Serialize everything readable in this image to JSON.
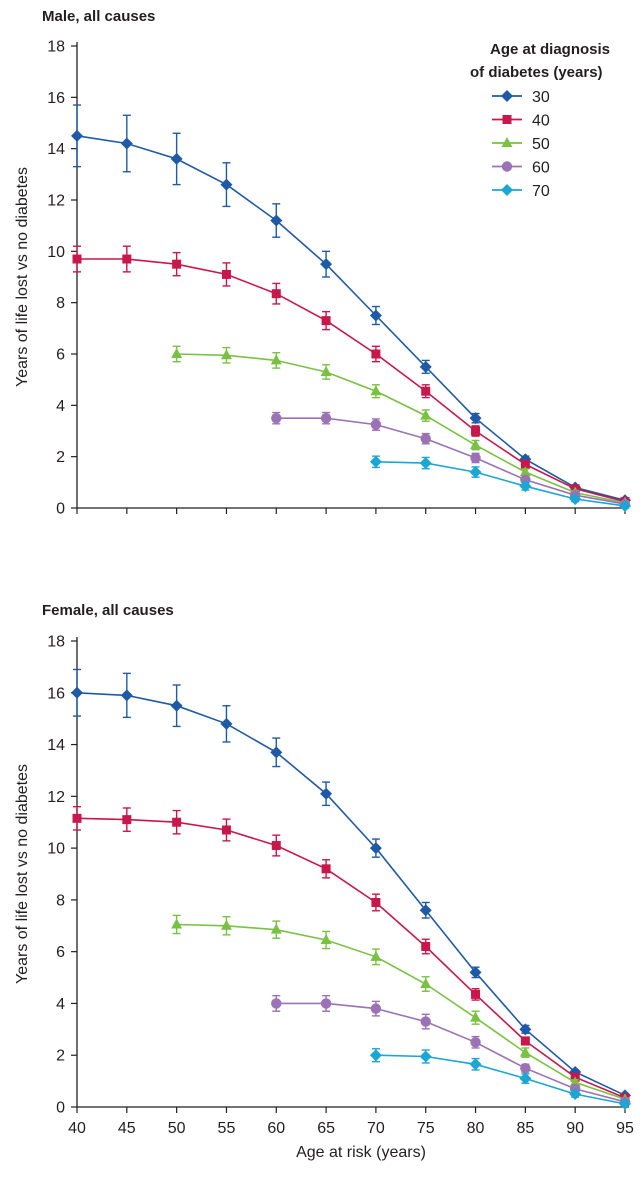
{
  "legend": {
    "title_line1": "Age at diagnosis",
    "title_line2": "of diabetes (years)",
    "position": "top-right",
    "entries": [
      {
        "label": "30",
        "color": "#1f5aa6",
        "marker": "diamond"
      },
      {
        "label": "40",
        "color": "#c8174b",
        "marker": "square"
      },
      {
        "label": "50",
        "color": "#7ac143",
        "marker": "triangle"
      },
      {
        "label": "60",
        "color": "#9b72b5",
        "marker": "circle"
      },
      {
        "label": "70",
        "color": "#1ba6d3",
        "marker": "diamond"
      }
    ]
  },
  "chart_data": [
    {
      "type": "line",
      "title": "Male, all causes",
      "ylabel": "Years of life lost vs no diabetes",
      "xlabel": "",
      "xlim": [
        40,
        95
      ],
      "ylim": [
        0,
        18
      ],
      "xticks": [
        40,
        45,
        50,
        55,
        60,
        65,
        70,
        75,
        80,
        85,
        90,
        95
      ],
      "yticks": [
        0,
        2,
        4,
        6,
        8,
        10,
        12,
        14,
        16,
        18
      ],
      "grid": false,
      "error_bars": true,
      "series": [
        {
          "name": "30",
          "x": [
            40,
            45,
            50,
            55,
            60,
            65,
            70,
            75,
            80,
            85,
            90,
            95
          ],
          "y": [
            14.5,
            14.2,
            13.6,
            12.6,
            11.2,
            9.5,
            7.5,
            5.5,
            3.5,
            1.9,
            0.8,
            0.3
          ],
          "err": [
            1.2,
            1.1,
            1.0,
            0.85,
            0.65,
            0.5,
            0.35,
            0.25,
            0.18,
            0.12,
            0.08,
            0.05
          ]
        },
        {
          "name": "40",
          "x": [
            40,
            45,
            50,
            55,
            60,
            65,
            70,
            75,
            80,
            85,
            90,
            95
          ],
          "y": [
            9.7,
            9.7,
            9.5,
            9.1,
            8.35,
            7.3,
            6.0,
            4.55,
            3.0,
            1.7,
            0.75,
            0.25
          ],
          "err": [
            0.5,
            0.5,
            0.45,
            0.45,
            0.4,
            0.35,
            0.3,
            0.25,
            0.2,
            0.12,
            0.08,
            0.05
          ]
        },
        {
          "name": "50",
          "x": [
            50,
            55,
            60,
            65,
            70,
            75,
            80,
            85,
            90,
            95
          ],
          "y": [
            6.0,
            5.95,
            5.75,
            5.3,
            4.55,
            3.6,
            2.45,
            1.4,
            0.6,
            0.2
          ],
          "err": [
            0.3,
            0.3,
            0.3,
            0.28,
            0.25,
            0.22,
            0.18,
            0.12,
            0.08,
            0.05
          ]
        },
        {
          "name": "60",
          "x": [
            60,
            65,
            70,
            75,
            80,
            85,
            90,
            95
          ],
          "y": [
            3.5,
            3.5,
            3.25,
            2.7,
            1.95,
            1.1,
            0.5,
            0.15
          ],
          "err": [
            0.22,
            0.22,
            0.22,
            0.2,
            0.18,
            0.12,
            0.08,
            0.05
          ]
        },
        {
          "name": "70",
          "x": [
            70,
            75,
            80,
            85,
            90,
            95
          ],
          "y": [
            1.8,
            1.75,
            1.4,
            0.85,
            0.35,
            0.08
          ],
          "err": [
            0.22,
            0.22,
            0.2,
            0.15,
            0.1,
            0.05
          ]
        }
      ]
    },
    {
      "type": "line",
      "title": "Female, all causes",
      "ylabel": "Years of life lost vs no diabetes",
      "xlabel": "Age at risk (years)",
      "xlim": [
        40,
        95
      ],
      "ylim": [
        0,
        18
      ],
      "xticks": [
        40,
        45,
        50,
        55,
        60,
        65,
        70,
        75,
        80,
        85,
        90,
        95
      ],
      "yticks": [
        0,
        2,
        4,
        6,
        8,
        10,
        12,
        14,
        16,
        18
      ],
      "grid": false,
      "error_bars": true,
      "series": [
        {
          "name": "30",
          "x": [
            40,
            45,
            50,
            55,
            60,
            65,
            70,
            75,
            80,
            85,
            90,
            95
          ],
          "y": [
            16.0,
            15.9,
            15.5,
            14.8,
            13.7,
            12.1,
            10.0,
            7.6,
            5.2,
            3.0,
            1.35,
            0.45
          ],
          "err": [
            0.9,
            0.85,
            0.8,
            0.7,
            0.55,
            0.45,
            0.35,
            0.3,
            0.2,
            0.15,
            0.08,
            0.05
          ]
        },
        {
          "name": "40",
          "x": [
            40,
            45,
            50,
            55,
            60,
            65,
            70,
            75,
            80,
            85,
            90,
            95
          ],
          "y": [
            11.15,
            11.1,
            11.0,
            10.7,
            10.1,
            9.2,
            7.9,
            6.2,
            4.35,
            2.55,
            1.15,
            0.35
          ],
          "err": [
            0.45,
            0.45,
            0.45,
            0.42,
            0.4,
            0.35,
            0.32,
            0.28,
            0.22,
            0.15,
            0.08,
            0.05
          ]
        },
        {
          "name": "50",
          "x": [
            50,
            55,
            60,
            65,
            70,
            75,
            80,
            85,
            90,
            95
          ],
          "y": [
            7.05,
            7.0,
            6.85,
            6.45,
            5.8,
            4.75,
            3.45,
            2.1,
            0.95,
            0.3
          ],
          "err": [
            0.35,
            0.35,
            0.33,
            0.33,
            0.3,
            0.28,
            0.25,
            0.18,
            0.1,
            0.05
          ]
        },
        {
          "name": "60",
          "x": [
            60,
            65,
            70,
            75,
            80,
            85,
            90,
            95
          ],
          "y": [
            4.0,
            4.0,
            3.8,
            3.3,
            2.5,
            1.5,
            0.7,
            0.2
          ],
          "err": [
            0.3,
            0.3,
            0.28,
            0.28,
            0.22,
            0.15,
            0.1,
            0.05
          ]
        },
        {
          "name": "70",
          "x": [
            70,
            75,
            80,
            85,
            90,
            95
          ],
          "y": [
            2.0,
            1.95,
            1.65,
            1.1,
            0.5,
            0.12
          ],
          "err": [
            0.25,
            0.25,
            0.22,
            0.18,
            0.12,
            0.05
          ]
        }
      ]
    }
  ]
}
